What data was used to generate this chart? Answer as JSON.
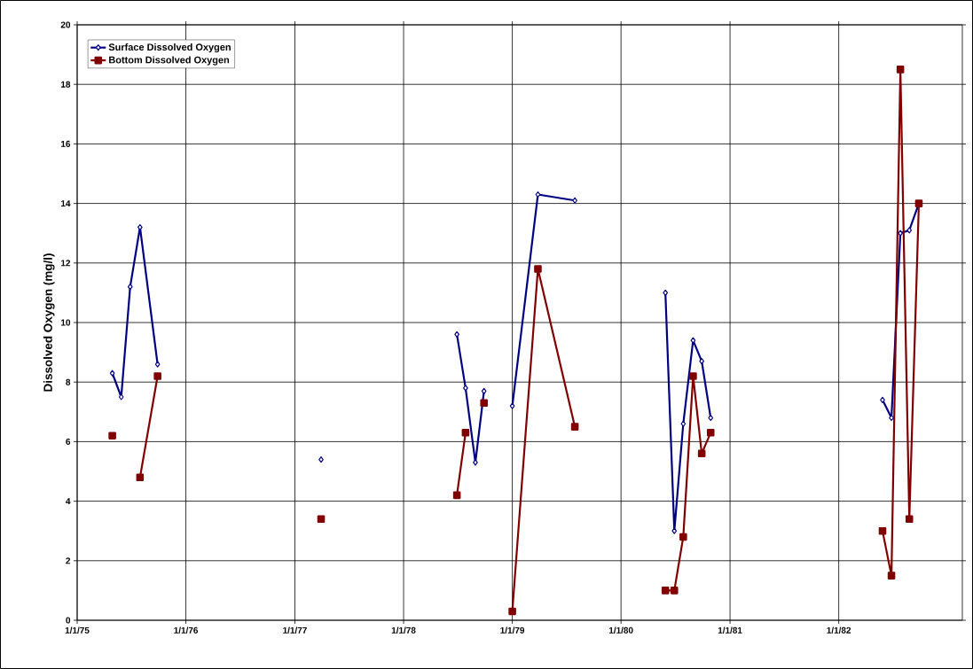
{
  "chart_data": {
    "type": "line",
    "ylabel": "Dissolved Oxygen (mg/l)",
    "x": [
      "1975-04-29",
      "1975-05-29",
      "1975-06-28",
      "1975-07-31",
      "1975-09-28",
      "1976-06-01",
      "1977-03-30",
      "1977-11-01",
      "1978-06-29",
      "1978-07-28",
      "1978-08-30",
      "1978-09-28",
      "1978-11-01",
      "1979-01-01",
      "1979-03-28",
      "1979-07-30",
      "1979-12-01",
      "1980-05-29",
      "1980-06-28",
      "1980-07-28",
      "1980-08-30",
      "1980-09-28",
      "1980-10-28",
      "1981-07-01",
      "1982-05-28",
      "1982-06-27",
      "1982-07-27",
      "1982-08-26",
      "1982-09-27"
    ],
    "series": [
      {
        "name": "Surface Dissolved Oxygen",
        "color": "#000080",
        "marker": "diamond",
        "values": [
          8.3,
          7.5,
          11.2,
          13.2,
          8.6,
          null,
          5.4,
          null,
          9.6,
          7.8,
          5.3,
          7.7,
          null,
          7.2,
          14.3,
          14.1,
          null,
          11.0,
          3.0,
          6.6,
          9.4,
          8.7,
          6.8,
          null,
          7.4,
          6.8,
          13.0,
          13.1,
          14.0
        ]
      },
      {
        "name": "Bottom Dissolved Oxygen",
        "color": "#800000",
        "marker": "square",
        "values": [
          6.2,
          null,
          null,
          4.8,
          8.2,
          null,
          3.4,
          null,
          4.2,
          6.3,
          null,
          7.3,
          null,
          0.3,
          11.8,
          6.5,
          null,
          1.0,
          1.0,
          2.8,
          8.2,
          5.6,
          6.3,
          null,
          3.0,
          1.5,
          18.5,
          3.4,
          14.0
        ]
      }
    ],
    "xlim": [
      "1975-01-01",
      "1983-02-20"
    ],
    "xticks": [
      {
        "value": "1975-01-01",
        "label": "1/1/75"
      },
      {
        "value": "1976-01-01",
        "label": "1/1/76"
      },
      {
        "value": "1977-01-01",
        "label": "1/1/77"
      },
      {
        "value": "1978-01-01",
        "label": "1/1/78"
      },
      {
        "value": "1979-01-01",
        "label": "1/1/79"
      },
      {
        "value": "1980-01-01",
        "label": "1/1/80"
      },
      {
        "value": "1981-01-01",
        "label": "1/1/81"
      },
      {
        "value": "1982-01-01",
        "label": "1/1/82"
      }
    ],
    "ylim": [
      0,
      20
    ],
    "yticks": [
      0,
      2,
      4,
      6,
      8,
      10,
      12,
      14,
      16,
      18,
      20
    ],
    "grid": true,
    "legend": "top left",
    "line_style": "solid"
  }
}
